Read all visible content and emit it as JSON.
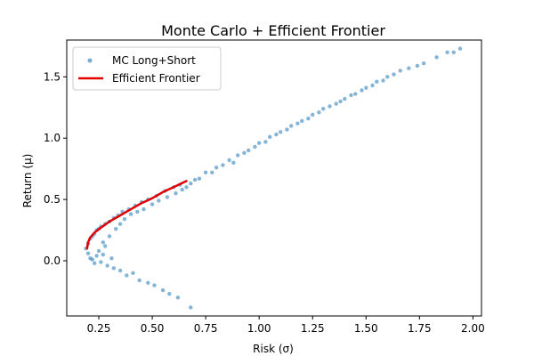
{
  "chart_data": {
    "type": "scatter",
    "title": "Monte Carlo + Efficient Frontier",
    "xlabel": "Risk (σ)",
    "ylabel": "Return (μ)",
    "xlim": [
      0.1,
      2.04
    ],
    "ylim": [
      -0.45,
      1.8
    ],
    "xticks": [
      0.25,
      0.5,
      0.75,
      1.0,
      1.25,
      1.5,
      1.75,
      2.0
    ],
    "xtick_labels": [
      "0.25",
      "0.50",
      "0.75",
      "1.00",
      "1.25",
      "1.50",
      "1.75",
      "2.00"
    ],
    "yticks": [
      0.0,
      0.5,
      1.0,
      1.5
    ],
    "ytick_labels": [
      "0.0",
      "0.5",
      "1.0",
      "1.5"
    ],
    "grid": false,
    "legend": {
      "placement": "upper-left",
      "entries": [
        {
          "label": "MC Long+Short",
          "kind": "marker",
          "color": "#1f77b4"
        },
        {
          "label": "Efficient Frontier",
          "kind": "line",
          "color": "#e00000"
        }
      ]
    },
    "series": [
      {
        "name": "MC Long+Short",
        "kind": "scatter",
        "color": "#1f77b4",
        "points": [
          [
            0.19,
            0.1
          ],
          [
            0.2,
            0.14
          ],
          [
            0.2,
            0.06
          ],
          [
            0.21,
            0.18
          ],
          [
            0.21,
            0.02
          ],
          [
            0.22,
            0.2
          ],
          [
            0.22,
            0.01
          ],
          [
            0.23,
            0.22
          ],
          [
            0.23,
            -0.02
          ],
          [
            0.24,
            0.25
          ],
          [
            0.24,
            0.04
          ],
          [
            0.25,
            0.26
          ],
          [
            0.25,
            0.08
          ],
          [
            0.26,
            0.28
          ],
          [
            0.26,
            -0.01
          ],
          [
            0.27,
            0.15
          ],
          [
            0.27,
            0.05
          ],
          [
            0.28,
            0.3
          ],
          [
            0.28,
            0.12
          ],
          [
            0.29,
            -0.04
          ],
          [
            0.3,
            0.32
          ],
          [
            0.3,
            0.2
          ],
          [
            0.31,
            0.02
          ],
          [
            0.32,
            0.35
          ],
          [
            0.32,
            -0.06
          ],
          [
            0.33,
            0.26
          ],
          [
            0.34,
            0.37
          ],
          [
            0.35,
            0.3
          ],
          [
            0.35,
            -0.08
          ],
          [
            0.36,
            0.4
          ],
          [
            0.37,
            0.34
          ],
          [
            0.38,
            -0.12
          ],
          [
            0.39,
            0.42
          ],
          [
            0.4,
            0.38
          ],
          [
            0.41,
            -0.1
          ],
          [
            0.42,
            0.45
          ],
          [
            0.43,
            0.4
          ],
          [
            0.44,
            -0.16
          ],
          [
            0.45,
            0.48
          ],
          [
            0.46,
            0.42
          ],
          [
            0.48,
            -0.18
          ],
          [
            0.48,
            0.5
          ],
          [
            0.5,
            0.46
          ],
          [
            0.51,
            -0.2
          ],
          [
            0.52,
            0.53
          ],
          [
            0.53,
            0.49
          ],
          [
            0.55,
            -0.24
          ],
          [
            0.56,
            0.57
          ],
          [
            0.57,
            0.52
          ],
          [
            0.58,
            -0.27
          ],
          [
            0.6,
            0.6
          ],
          [
            0.61,
            0.55
          ],
          [
            0.62,
            -0.3
          ],
          [
            0.63,
            0.62
          ],
          [
            0.64,
            0.58
          ],
          [
            0.68,
            -0.38
          ],
          [
            0.66,
            0.6
          ],
          [
            0.68,
            0.63
          ],
          [
            0.7,
            0.66
          ],
          [
            0.72,
            0.67
          ],
          [
            0.75,
            0.72
          ],
          [
            0.78,
            0.72
          ],
          [
            0.8,
            0.76
          ],
          [
            0.83,
            0.78
          ],
          [
            0.86,
            0.82
          ],
          [
            0.88,
            0.8
          ],
          [
            0.9,
            0.86
          ],
          [
            0.93,
            0.88
          ],
          [
            0.95,
            0.9
          ],
          [
            0.98,
            0.93
          ],
          [
            1.0,
            0.96
          ],
          [
            1.03,
            0.97
          ],
          [
            1.05,
            1.01
          ],
          [
            1.08,
            1.03
          ],
          [
            1.1,
            1.05
          ],
          [
            1.13,
            1.07
          ],
          [
            1.15,
            1.1
          ],
          [
            1.18,
            1.12
          ],
          [
            1.2,
            1.14
          ],
          [
            1.23,
            1.16
          ],
          [
            1.25,
            1.19
          ],
          [
            1.28,
            1.21
          ],
          [
            1.3,
            1.24
          ],
          [
            1.33,
            1.26
          ],
          [
            1.36,
            1.28
          ],
          [
            1.38,
            1.3
          ],
          [
            1.4,
            1.32
          ],
          [
            1.43,
            1.35
          ],
          [
            1.45,
            1.36
          ],
          [
            1.48,
            1.39
          ],
          [
            1.5,
            1.41
          ],
          [
            1.53,
            1.43
          ],
          [
            1.55,
            1.46
          ],
          [
            1.58,
            1.47
          ],
          [
            1.6,
            1.5
          ],
          [
            1.63,
            1.52
          ],
          [
            1.66,
            1.55
          ],
          [
            1.7,
            1.57
          ],
          [
            1.74,
            1.59
          ],
          [
            1.77,
            1.61
          ],
          [
            1.83,
            1.66
          ],
          [
            1.88,
            1.7
          ],
          [
            1.91,
            1.7
          ],
          [
            1.94,
            1.73
          ]
        ]
      },
      {
        "name": "Efficient Frontier",
        "kind": "line",
        "color": "#e00000",
        "points": [
          [
            0.195,
            0.1
          ],
          [
            0.2,
            0.15
          ],
          [
            0.21,
            0.19
          ],
          [
            0.23,
            0.23
          ],
          [
            0.26,
            0.27
          ],
          [
            0.3,
            0.32
          ],
          [
            0.35,
            0.37
          ],
          [
            0.4,
            0.42
          ],
          [
            0.45,
            0.47
          ],
          [
            0.5,
            0.51
          ],
          [
            0.55,
            0.56
          ],
          [
            0.6,
            0.6
          ],
          [
            0.66,
            0.65
          ]
        ]
      }
    ]
  }
}
